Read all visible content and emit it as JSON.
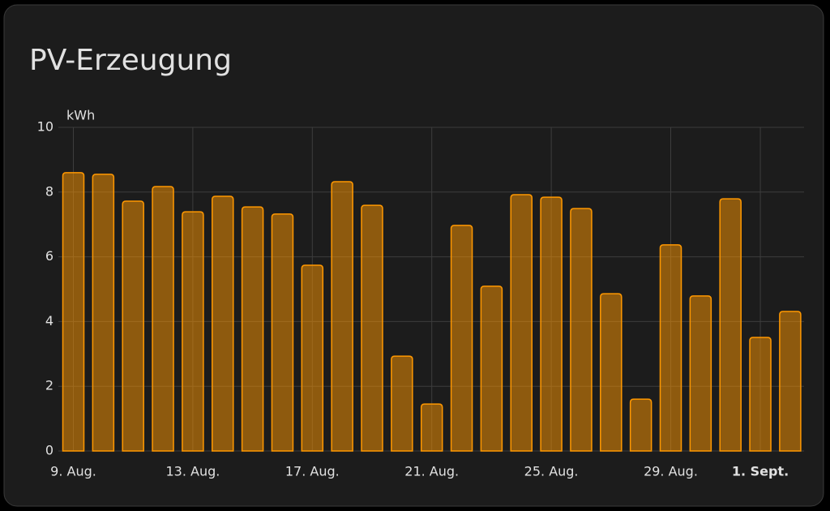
{
  "chart_data": {
    "type": "bar",
    "title": "PV-Erzeugung",
    "y_label": "kWh",
    "categories": [
      "9. Aug.",
      null,
      null,
      null,
      "13. Aug.",
      null,
      null,
      null,
      "17. Aug.",
      null,
      null,
      null,
      "21. Aug.",
      null,
      null,
      null,
      "25. Aug.",
      null,
      null,
      null,
      "29. Aug.",
      null,
      null,
      "1. Sept.",
      null
    ],
    "values": [
      8.6,
      8.55,
      7.72,
      8.17,
      7.39,
      7.87,
      7.54,
      7.32,
      5.74,
      8.32,
      7.59,
      2.93,
      1.45,
      6.97,
      5.09,
      7.92,
      7.84,
      7.49,
      4.86,
      1.6,
      6.37,
      4.79,
      7.79,
      3.51,
      4.31
    ],
    "color": "#ff9800",
    "ylim": [
      0,
      10
    ],
    "yticks": [
      0,
      2,
      4,
      6,
      8,
      10
    ],
    "grid": true
  }
}
